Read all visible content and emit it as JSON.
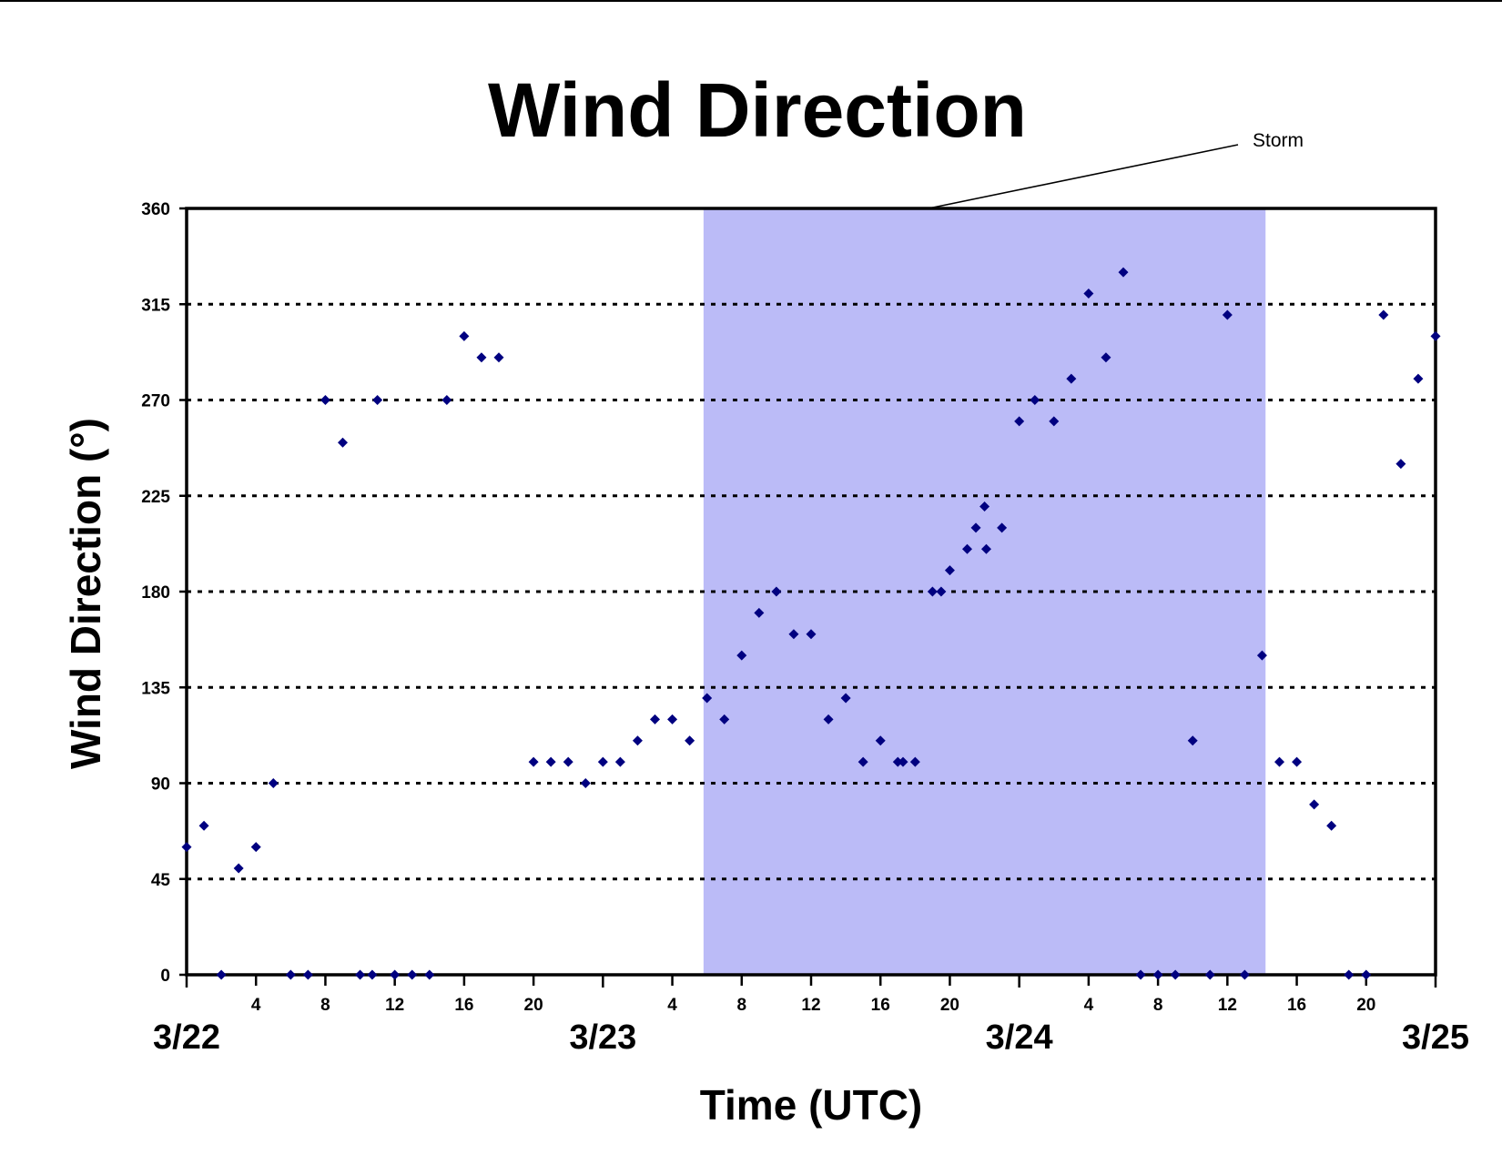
{
  "chart_data": {
    "type": "scatter",
    "title": "Wind Direction",
    "xlabel": "Time (UTC)",
    "ylabel": "Wind Direction (°)",
    "x_unit": "hours from 3/22 00:00 UTC",
    "xlim": [
      0,
      72
    ],
    "ylim": [
      0,
      360
    ],
    "y_ticks": [
      0,
      45,
      90,
      135,
      180,
      225,
      270,
      315,
      360
    ],
    "grid": "horizontal dotted",
    "hour_ticks": [
      {
        "x": 4,
        "label": "4"
      },
      {
        "x": 8,
        "label": "8"
      },
      {
        "x": 12,
        "label": "12"
      },
      {
        "x": 16,
        "label": "16"
      },
      {
        "x": 20,
        "label": "20"
      },
      {
        "x": 28,
        "label": "4"
      },
      {
        "x": 32,
        "label": "8"
      },
      {
        "x": 36,
        "label": "12"
      },
      {
        "x": 40,
        "label": "16"
      },
      {
        "x": 44,
        "label": "20"
      },
      {
        "x": 52,
        "label": "4"
      },
      {
        "x": 56,
        "label": "8"
      },
      {
        "x": 60,
        "label": "12"
      },
      {
        "x": 64,
        "label": "16"
      },
      {
        "x": 68,
        "label": "20"
      }
    ],
    "date_labels": [
      {
        "x": 0,
        "label": "3/22"
      },
      {
        "x": 24,
        "label": "3/23"
      },
      {
        "x": 48,
        "label": "3/24"
      },
      {
        "x": 72,
        "label": "3/25"
      }
    ],
    "shaded_region": {
      "x_start": 29.8,
      "x_end": 62.2,
      "color": "#bbbbf7"
    },
    "annotation": {
      "text": "Storm"
    },
    "marker_color": "#000080",
    "series": [
      {
        "points": [
          [
            0,
            60
          ],
          [
            1,
            70
          ],
          [
            2,
            0
          ],
          [
            3,
            50
          ],
          [
            4,
            60
          ],
          [
            5,
            90
          ],
          [
            6,
            0
          ],
          [
            7,
            0
          ],
          [
            8,
            270
          ],
          [
            9,
            250
          ],
          [
            10,
            0
          ],
          [
            10.7,
            0
          ],
          [
            11,
            270
          ],
          [
            12,
            0
          ],
          [
            13,
            0
          ],
          [
            14,
            0
          ],
          [
            15,
            270
          ],
          [
            16,
            300
          ],
          [
            17,
            290
          ],
          [
            18,
            290
          ],
          [
            20,
            100
          ],
          [
            21,
            100
          ],
          [
            22,
            100
          ],
          [
            23,
            90
          ],
          [
            24,
            100
          ],
          [
            25,
            100
          ],
          [
            26,
            110
          ],
          [
            27,
            120
          ],
          [
            28,
            120
          ],
          [
            29,
            110
          ],
          [
            30,
            130
          ],
          [
            31,
            120
          ],
          [
            32,
            150
          ],
          [
            33,
            170
          ],
          [
            34,
            180
          ],
          [
            35,
            160
          ],
          [
            36,
            160
          ],
          [
            37,
            120
          ],
          [
            38,
            130
          ],
          [
            39,
            100
          ],
          [
            40,
            110
          ],
          [
            41,
            100
          ],
          [
            41.3,
            100
          ],
          [
            42,
            100
          ],
          [
            43,
            180
          ],
          [
            43.5,
            180
          ],
          [
            44,
            190
          ],
          [
            45,
            200
          ],
          [
            45.5,
            210
          ],
          [
            46,
            220
          ],
          [
            46.1,
            200
          ],
          [
            47,
            210
          ],
          [
            48,
            260
          ],
          [
            48.9,
            270
          ],
          [
            50,
            260
          ],
          [
            51,
            280
          ],
          [
            52,
            320
          ],
          [
            53,
            290
          ],
          [
            54,
            330
          ],
          [
            55,
            0
          ],
          [
            56,
            0
          ],
          [
            57,
            0
          ],
          [
            58,
            110
          ],
          [
            59,
            0
          ],
          [
            60,
            310
          ],
          [
            61,
            0
          ],
          [
            62,
            150
          ],
          [
            63,
            100
          ],
          [
            64,
            100
          ],
          [
            65,
            80
          ],
          [
            66,
            70
          ],
          [
            67,
            0
          ],
          [
            68,
            0
          ],
          [
            69,
            310
          ],
          [
            70,
            240
          ],
          [
            71,
            280
          ],
          [
            72,
            300
          ]
        ]
      }
    ]
  }
}
